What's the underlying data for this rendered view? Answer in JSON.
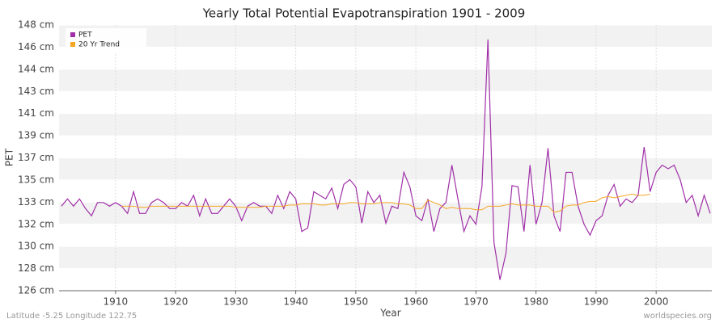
{
  "chart_data": {
    "type": "line",
    "title": "Yearly Total Potential Evapotranspiration 1901 - 2009",
    "x_label": "Year",
    "y_label": "PET",
    "footer_left": "Latitude -5.25 Longitude 122.75",
    "footer_right": "worldspecies.org",
    "legend": "top-left",
    "grid": true,
    "xlim": [
      1901,
      2009
    ],
    "xticks": [
      1910,
      1920,
      1930,
      1940,
      1950,
      1960,
      1970,
      1980,
      1990,
      2000
    ],
    "ylim": [
      126,
      148
    ],
    "yticks": [
      {
        "value": 126,
        "label": "126 cm"
      },
      {
        "value": 127.83,
        "label": "128 cm"
      },
      {
        "value": 129.67,
        "label": "130 cm"
      },
      {
        "value": 131.5,
        "label": "132 cm"
      },
      {
        "value": 133.33,
        "label": "133 cm"
      },
      {
        "value": 135.17,
        "label": "135 cm"
      },
      {
        "value": 137,
        "label": "137 cm"
      },
      {
        "value": 138.83,
        "label": "139 cm"
      },
      {
        "value": 140.67,
        "label": "141 cm"
      },
      {
        "value": 142.5,
        "label": "143 cm"
      },
      {
        "value": 144.33,
        "label": "144 cm"
      },
      {
        "value": 146.17,
        "label": "146 cm"
      },
      {
        "value": 148,
        "label": "148 cm"
      }
    ],
    "x": [
      1901,
      1902,
      1903,
      1904,
      1905,
      1906,
      1907,
      1908,
      1909,
      1910,
      1911,
      1912,
      1913,
      1914,
      1915,
      1916,
      1917,
      1918,
      1919,
      1920,
      1921,
      1922,
      1923,
      1924,
      1925,
      1926,
      1927,
      1928,
      1929,
      1930,
      1931,
      1932,
      1933,
      1934,
      1935,
      1936,
      1937,
      1938,
      1939,
      1940,
      1941,
      1942,
      1943,
      1944,
      1945,
      1946,
      1947,
      1948,
      1949,
      1950,
      1951,
      1952,
      1953,
      1954,
      1955,
      1956,
      1957,
      1958,
      1959,
      1960,
      1961,
      1962,
      1963,
      1964,
      1965,
      1966,
      1967,
      1968,
      1969,
      1970,
      1971,
      1972,
      1973,
      1974,
      1975,
      1976,
      1977,
      1978,
      1979,
      1980,
      1981,
      1982,
      1983,
      1984,
      1985,
      1986,
      1987,
      1988,
      1989,
      1990,
      1991,
      1992,
      1993,
      1994,
      1995,
      1996,
      1997,
      1998,
      1999,
      2000,
      2001,
      2002,
      2003,
      2004,
      2005,
      2006,
      2007,
      2008,
      2009
    ],
    "series": [
      {
        "name": "PET",
        "color": "#a030a8",
        "values": [
          133.0,
          133.6,
          133.0,
          133.6,
          132.8,
          132.2,
          133.3,
          133.3,
          133.0,
          133.3,
          133.0,
          132.4,
          134.2,
          132.4,
          132.4,
          133.3,
          133.6,
          133.3,
          132.8,
          132.8,
          133.3,
          133.0,
          133.9,
          132.2,
          133.6,
          132.4,
          132.4,
          133.0,
          133.6,
          133.0,
          131.8,
          133.0,
          133.3,
          133.0,
          133.0,
          132.4,
          133.9,
          132.8,
          134.2,
          133.6,
          130.9,
          131.2,
          134.2,
          133.9,
          133.6,
          134.5,
          132.8,
          134.8,
          135.2,
          134.6,
          131.6,
          134.2,
          133.3,
          133.9,
          131.6,
          133.0,
          132.8,
          135.8,
          134.6,
          132.2,
          131.8,
          133.6,
          130.9,
          132.8,
          133.3,
          136.4,
          133.6,
          130.9,
          132.2,
          131.5,
          134.6,
          146.8,
          130.0,
          126.9,
          129.1,
          134.7,
          134.6,
          130.9,
          136.4,
          131.5,
          133.3,
          137.8,
          132.2,
          130.9,
          135.8,
          135.8,
          133.0,
          131.5,
          130.6,
          131.8,
          132.2,
          133.9,
          134.8,
          133.0,
          133.6,
          133.3,
          133.9,
          137.9,
          134.2,
          135.8,
          136.4,
          136.1,
          136.4,
          135.2,
          133.3,
          133.9,
          132.2,
          133.9,
          132.4
        ]
      },
      {
        "name": "20 Yr Trend",
        "color": "#f5a623",
        "values": [
          null,
          null,
          null,
          null,
          null,
          null,
          null,
          null,
          null,
          null,
          133.0,
          133.0,
          133.0,
          132.9,
          132.9,
          133.0,
          133.0,
          133.0,
          133.0,
          133.0,
          133.0,
          133.0,
          133.0,
          133.0,
          133.0,
          133.0,
          133.0,
          133.0,
          133.0,
          132.9,
          132.9,
          132.9,
          132.9,
          132.9,
          133.0,
          133.0,
          133.0,
          133.0,
          133.1,
          133.1,
          133.2,
          133.2,
          133.2,
          133.1,
          133.1,
          133.2,
          133.2,
          133.2,
          133.3,
          133.3,
          133.2,
          133.2,
          133.2,
          133.3,
          133.3,
          133.3,
          133.2,
          133.2,
          133.1,
          132.8,
          132.8,
          133.5,
          133.3,
          133.1,
          132.8,
          132.9,
          132.8,
          132.8,
          132.8,
          132.7,
          132.7,
          133.0,
          133.0,
          133.0,
          133.1,
          133.2,
          133.1,
          133.1,
          133.1,
          133.0,
          133.0,
          133.0,
          132.5,
          132.6,
          133.0,
          133.1,
          133.1,
          133.3,
          133.4,
          133.4,
          133.7,
          133.8,
          133.7,
          133.8,
          133.9,
          134.0,
          133.9,
          133.9,
          134.0,
          null,
          null,
          null,
          null,
          null,
          null,
          null,
          null,
          null,
          null
        ]
      }
    ]
  }
}
